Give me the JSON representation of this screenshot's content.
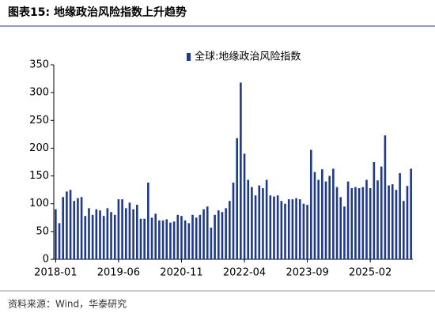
{
  "chart_data": {
    "type": "bar",
    "title": "图表15:  地缘政治风险指数上升趋势",
    "source": "资料来源：Wind，华泰研究",
    "categories": [
      "2018-01",
      null,
      null,
      null,
      null,
      null,
      null,
      null,
      null,
      null,
      null,
      null,
      null,
      null,
      null,
      null,
      null,
      "2019-06",
      null,
      null,
      null,
      null,
      null,
      null,
      null,
      null,
      null,
      null,
      null,
      null,
      null,
      null,
      null,
      null,
      "2020-11",
      null,
      null,
      null,
      null,
      null,
      null,
      null,
      null,
      null,
      null,
      null,
      null,
      null,
      null,
      null,
      null,
      "2022-04",
      null,
      null,
      null,
      null,
      null,
      null,
      null,
      null,
      null,
      null,
      null,
      null,
      null,
      null,
      null,
      null,
      "2023-09",
      null,
      null,
      null,
      null,
      null,
      null,
      null,
      null,
      null,
      null,
      null,
      null,
      null,
      null,
      null,
      null,
      "2025-02",
      null,
      null,
      null,
      null,
      null,
      null,
      null,
      null,
      null,
      null,
      null
    ],
    "series": [
      {
        "name": "全球:地缘政治风险指数",
        "color": "#1f3a8a",
        "values": [
          90,
          65,
          112,
          122,
          125,
          105,
          110,
          112,
          78,
          92,
          80,
          90,
          88,
          78,
          92,
          85,
          80,
          108,
          108,
          92,
          102,
          90,
          98,
          73,
          73,
          138,
          75,
          82,
          70,
          70,
          72,
          66,
          68,
          80,
          78,
          70,
          65,
          80,
          75,
          80,
          90,
          95,
          57,
          80,
          88,
          85,
          92,
          105,
          138,
          218,
          318,
          190,
          143,
          130,
          115,
          133,
          128,
          143,
          115,
          113,
          115,
          105,
          100,
          108,
          108,
          110,
          108,
          100,
          98,
          197,
          157,
          143,
          162,
          140,
          150,
          163,
          130,
          112,
          95,
          140,
          128,
          130,
          128,
          130,
          143,
          128,
          175,
          142,
          167,
          223,
          133,
          135,
          125,
          155,
          105,
          132,
          163
        ]
      }
    ],
    "ylim": [
      0,
      350
    ],
    "yticks": [
      0,
      50,
      100,
      150,
      200,
      250,
      300,
      350
    ],
    "grid": false
  }
}
